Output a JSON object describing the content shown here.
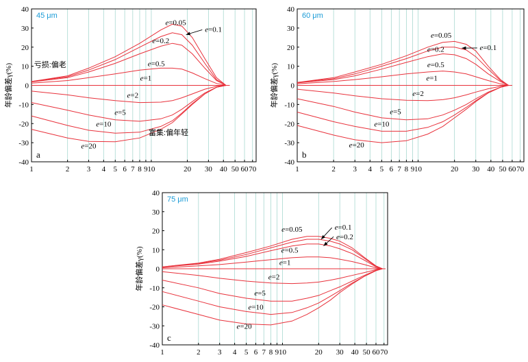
{
  "colors": {
    "curve": "#e8303a",
    "grid": "#a8d8d0",
    "axis": "#000000",
    "size_label": "#1a9bd7"
  },
  "chart_data": [
    {
      "panel": "a",
      "type": "line",
      "size_label": "45 μm",
      "ylabel": "年龄偏差γ(%)",
      "xscale": "log",
      "xlim": [
        1,
        75
      ],
      "ylim": [
        -40,
        40
      ],
      "xticks": [
        1,
        2,
        3,
        4,
        5,
        6,
        7,
        8,
        9,
        10,
        20,
        30,
        40,
        50,
        60,
        70
      ],
      "yticks": [
        -40,
        -30,
        -20,
        -10,
        0,
        10,
        20,
        30,
        40
      ],
      "grid": "vertical",
      "annotations": [
        "亏损:偏老",
        "富集:偏年轻"
      ],
      "series": [
        {
          "label": "e=0.05",
          "x": [
            1,
            2,
            3,
            5,
            8,
            12,
            15,
            18,
            22,
            28,
            35,
            42,
            45
          ],
          "y": [
            2,
            5,
            9,
            15,
            22,
            29,
            32,
            31,
            25,
            14,
            4,
            0,
            0
          ]
        },
        {
          "label": "e=0.1",
          "x": [
            1,
            2,
            3,
            5,
            8,
            12,
            15,
            18,
            22,
            28,
            35,
            42,
            45
          ],
          "y": [
            2,
            4.5,
            8,
            13.5,
            20,
            25.5,
            27.5,
            26.5,
            21,
            11.5,
            3,
            0,
            0
          ]
        },
        {
          "label": "e=0.2",
          "x": [
            1,
            2,
            3,
            5,
            8,
            12,
            15,
            18,
            22,
            28,
            35,
            42,
            45
          ],
          "y": [
            1.8,
            4,
            7,
            11.5,
            16.5,
            20.5,
            22,
            21,
            16.5,
            9,
            2.5,
            0,
            0
          ]
        },
        {
          "label": "e=0.5",
          "x": [
            1,
            2,
            3,
            5,
            8,
            12,
            15,
            18,
            22,
            28,
            35,
            42,
            45
          ],
          "y": [
            1.2,
            2.5,
            4,
            6,
            8,
            9,
            9,
            8.5,
            6.5,
            3.5,
            1,
            0,
            0
          ]
        },
        {
          "label": "e=1",
          "x": [
            1,
            10,
            45
          ],
          "y": [
            0,
            0,
            0
          ]
        },
        {
          "label": "e=2",
          "x": [
            1,
            2,
            3,
            5,
            8,
            12,
            15,
            18,
            22,
            28,
            35,
            42,
            45
          ],
          "y": [
            -3,
            -5,
            -6.5,
            -8,
            -9,
            -8.8,
            -8,
            -6.5,
            -4.5,
            -2,
            -0.5,
            0,
            0
          ]
        },
        {
          "label": "e=5",
          "x": [
            1,
            2,
            3,
            5,
            8,
            12,
            15,
            18,
            22,
            28,
            35,
            42,
            45
          ],
          "y": [
            -9,
            -13,
            -15.5,
            -18,
            -18.8,
            -17.5,
            -15.5,
            -12.5,
            -8.5,
            -4,
            -1,
            0,
            0
          ]
        },
        {
          "label": "e=10",
          "x": [
            1,
            2,
            3,
            5,
            8,
            12,
            15,
            18,
            22,
            28,
            35,
            42,
            45
          ],
          "y": [
            -16,
            -21,
            -23.5,
            -25,
            -24.5,
            -21.5,
            -18.5,
            -14.5,
            -9.5,
            -4.5,
            -1,
            0,
            0
          ]
        },
        {
          "label": "e=20",
          "x": [
            1,
            2,
            3,
            5,
            8,
            12,
            15,
            18,
            22,
            28,
            35,
            42,
            45
          ],
          "y": [
            -23,
            -27.5,
            -29.3,
            -29.5,
            -27.5,
            -23,
            -19.5,
            -15,
            -10,
            -4.5,
            -1,
            0,
            0
          ]
        }
      ]
    },
    {
      "panel": "b",
      "type": "line",
      "size_label": "60 μm",
      "ylabel": "年龄偏差γ(%)",
      "xscale": "log",
      "xlim": [
        1,
        75
      ],
      "ylim": [
        -40,
        40
      ],
      "xticks": [
        1,
        2,
        3,
        4,
        5,
        6,
        7,
        8,
        9,
        10,
        20,
        30,
        40,
        50,
        60,
        70
      ],
      "yticks": [
        -40,
        -30,
        -20,
        -10,
        0,
        10,
        20,
        30,
        40
      ],
      "grid": "vertical",
      "series": [
        {
          "label": "e=0.05",
          "x": [
            1,
            2,
            3,
            5,
            8,
            12,
            16,
            20,
            25,
            30,
            38,
            48,
            56,
            60
          ],
          "y": [
            1.5,
            4,
            7,
            11,
            15.5,
            20,
            22.5,
            23,
            21.5,
            18,
            10,
            3,
            0,
            0
          ]
        },
        {
          "label": "e=0.1",
          "x": [
            1,
            2,
            3,
            5,
            8,
            12,
            16,
            20,
            25,
            30,
            38,
            48,
            56,
            60
          ],
          "y": [
            1.5,
            3.5,
            6,
            10,
            14,
            18,
            20,
            20,
            18.5,
            15,
            8.5,
            2.5,
            0,
            0
          ]
        },
        {
          "label": "e=0.2",
          "x": [
            1,
            2,
            3,
            5,
            8,
            12,
            16,
            20,
            25,
            30,
            38,
            48,
            56,
            60
          ],
          "y": [
            1.3,
            3,
            5,
            8.5,
            12,
            15,
            16.5,
            16,
            14,
            11,
            6,
            2,
            0,
            0
          ]
        },
        {
          "label": "e=0.5",
          "x": [
            1,
            2,
            3,
            5,
            8,
            12,
            16,
            20,
            25,
            30,
            38,
            48,
            56,
            60
          ],
          "y": [
            0.8,
            2,
            3,
            4.5,
            6,
            7,
            7.5,
            7,
            6,
            4.5,
            2.5,
            0.8,
            0,
            0
          ]
        },
        {
          "label": "e=1",
          "x": [
            1,
            10,
            60
          ],
          "y": [
            0,
            0,
            0
          ]
        },
        {
          "label": "e=2",
          "x": [
            1,
            2,
            3,
            5,
            8,
            12,
            16,
            20,
            25,
            30,
            38,
            48,
            56,
            60
          ],
          "y": [
            -2,
            -4,
            -5.5,
            -7,
            -7.8,
            -8,
            -7.5,
            -6.5,
            -5,
            -3.5,
            -1.8,
            -0.5,
            0,
            0
          ]
        },
        {
          "label": "e=5",
          "x": [
            1,
            2,
            3,
            5,
            8,
            12,
            16,
            20,
            25,
            30,
            38,
            48,
            56,
            60
          ],
          "y": [
            -7,
            -11,
            -14,
            -17,
            -18,
            -17.5,
            -15.5,
            -13,
            -10,
            -7,
            -3.5,
            -1,
            0,
            0
          ]
        },
        {
          "label": "e=10",
          "x": [
            1,
            2,
            3,
            5,
            8,
            12,
            16,
            20,
            25,
            30,
            38,
            48,
            56,
            60
          ],
          "y": [
            -14,
            -19,
            -21.5,
            -24,
            -24,
            -22,
            -19,
            -15.5,
            -11.5,
            -8,
            -4,
            -1,
            0,
            0
          ]
        },
        {
          "label": "e=20",
          "x": [
            1,
            2,
            3,
            5,
            8,
            12,
            16,
            20,
            25,
            30,
            38,
            48,
            56,
            60
          ],
          "y": [
            -21,
            -26,
            -28.5,
            -30,
            -29,
            -25.5,
            -21.5,
            -17,
            -12.5,
            -8.5,
            -4,
            -1,
            0,
            0
          ]
        }
      ]
    },
    {
      "panel": "c",
      "type": "line",
      "size_label": "75 μm",
      "ylabel": "年龄偏差γ(%)",
      "xscale": "log",
      "xlim": [
        1,
        75
      ],
      "ylim": [
        -40,
        40
      ],
      "xticks": [
        1,
        2,
        3,
        4,
        5,
        6,
        7,
        8,
        9,
        10,
        20,
        30,
        40,
        50,
        60,
        70
      ],
      "yticks": [
        -40,
        -30,
        -20,
        -10,
        0,
        10,
        20,
        30,
        40
      ],
      "grid": "vertical",
      "series": [
        {
          "label": "e=0.05",
          "x": [
            1,
            2,
            3,
            5,
            8,
            12,
            16,
            20,
            25,
            30,
            38,
            48,
            60,
            68,
            72
          ],
          "y": [
            1,
            3,
            5,
            8.5,
            12,
            15.5,
            17,
            17,
            16,
            14.5,
            11,
            6,
            1.5,
            0,
            0
          ]
        },
        {
          "label": "e=0.1",
          "x": [
            1,
            2,
            3,
            5,
            8,
            12,
            16,
            20,
            25,
            30,
            38,
            48,
            60,
            68,
            72
          ],
          "y": [
            1,
            2.8,
            4.5,
            7.5,
            11,
            14,
            15.5,
            15.5,
            14.5,
            13,
            10,
            5.5,
            1.2,
            0,
            0
          ]
        },
        {
          "label": "e=0.2",
          "x": [
            1,
            2,
            3,
            5,
            8,
            12,
            16,
            20,
            25,
            30,
            38,
            48,
            60,
            68,
            72
          ],
          "y": [
            0.9,
            2.4,
            4,
            6.5,
            9.5,
            12,
            13,
            13,
            12,
            10.5,
            8,
            4.5,
            1,
            0,
            0
          ]
        },
        {
          "label": "e=0.5",
          "x": [
            1,
            2,
            3,
            5,
            8,
            12,
            16,
            20,
            25,
            30,
            38,
            48,
            60,
            68,
            72
          ],
          "y": [
            0.5,
            1.5,
            2.2,
            3.5,
            4.8,
            5.8,
            6.2,
            6.2,
            5.8,
            5,
            3.8,
            2.2,
            0.5,
            0,
            0
          ]
        },
        {
          "label": "e=1",
          "x": [
            1,
            10,
            72
          ],
          "y": [
            0,
            0,
            0
          ]
        },
        {
          "label": "e=2",
          "x": [
            1,
            2,
            3,
            5,
            8,
            12,
            16,
            20,
            25,
            30,
            38,
            48,
            60,
            68,
            72
          ],
          "y": [
            -1.5,
            -3.5,
            -5,
            -6.5,
            -7.5,
            -7.8,
            -7.5,
            -7,
            -6,
            -5,
            -3.5,
            -2,
            -0.5,
            0,
            0
          ]
        },
        {
          "label": "e=5",
          "x": [
            1,
            2,
            3,
            5,
            8,
            12,
            16,
            20,
            25,
            30,
            38,
            48,
            60,
            68,
            72
          ],
          "y": [
            -6,
            -10,
            -13,
            -15.5,
            -17,
            -17,
            -15.5,
            -14,
            -11.5,
            -9.5,
            -6.5,
            -3.5,
            -0.8,
            0,
            0
          ]
        },
        {
          "label": "e=10",
          "x": [
            1,
            2,
            3,
            5,
            8,
            12,
            16,
            20,
            25,
            30,
            38,
            48,
            60,
            68,
            72
          ],
          "y": [
            -12,
            -17,
            -20,
            -22.5,
            -24,
            -23,
            -20.5,
            -18,
            -14.5,
            -11.5,
            -7.5,
            -4,
            -1,
            0,
            0
          ]
        },
        {
          "label": "e=20",
          "x": [
            1,
            2,
            3,
            5,
            8,
            12,
            16,
            20,
            25,
            30,
            38,
            48,
            60,
            68,
            72
          ],
          "y": [
            -19,
            -24,
            -27,
            -29,
            -29.5,
            -27.5,
            -24,
            -20.5,
            -16.5,
            -12.5,
            -8,
            -4,
            -1,
            0,
            0
          ]
        }
      ]
    }
  ]
}
